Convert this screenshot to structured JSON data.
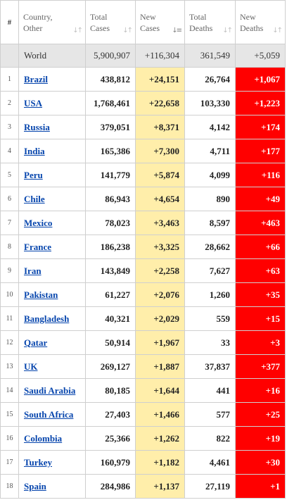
{
  "header": {
    "num": "#",
    "country": "Country, Other",
    "total_cases": "Total Cases",
    "new_cases": "New Cases",
    "total_deaths": "Total Deaths",
    "new_deaths": "New Deaths"
  },
  "world": {
    "name": "World",
    "total_cases": "5,900,907",
    "new_cases": "+116,304",
    "total_deaths": "361,549",
    "new_deaths": "+5,059"
  },
  "rows": [
    {
      "rank": "1",
      "country": "Brazil",
      "total_cases": "438,812",
      "new_cases": "+24,151",
      "total_deaths": "26,764",
      "new_deaths": "+1,067"
    },
    {
      "rank": "2",
      "country": "USA",
      "total_cases": "1,768,461",
      "new_cases": "+22,658",
      "total_deaths": "103,330",
      "new_deaths": "+1,223"
    },
    {
      "rank": "3",
      "country": "Russia",
      "total_cases": "379,051",
      "new_cases": "+8,371",
      "total_deaths": "4,142",
      "new_deaths": "+174"
    },
    {
      "rank": "4",
      "country": "India",
      "total_cases": "165,386",
      "new_cases": "+7,300",
      "total_deaths": "4,711",
      "new_deaths": "+177"
    },
    {
      "rank": "5",
      "country": "Peru",
      "total_cases": "141,779",
      "new_cases": "+5,874",
      "total_deaths": "4,099",
      "new_deaths": "+116"
    },
    {
      "rank": "6",
      "country": "Chile",
      "total_cases": "86,943",
      "new_cases": "+4,654",
      "total_deaths": "890",
      "new_deaths": "+49"
    },
    {
      "rank": "7",
      "country": "Mexico",
      "total_cases": "78,023",
      "new_cases": "+3,463",
      "total_deaths": "8,597",
      "new_deaths": "+463"
    },
    {
      "rank": "8",
      "country": "France",
      "total_cases": "186,238",
      "new_cases": "+3,325",
      "total_deaths": "28,662",
      "new_deaths": "+66"
    },
    {
      "rank": "9",
      "country": "Iran",
      "total_cases": "143,849",
      "new_cases": "+2,258",
      "total_deaths": "7,627",
      "new_deaths": "+63"
    },
    {
      "rank": "10",
      "country": "Pakistan",
      "total_cases": "61,227",
      "new_cases": "+2,076",
      "total_deaths": "1,260",
      "new_deaths": "+35"
    },
    {
      "rank": "11",
      "country": "Bangladesh",
      "total_cases": "40,321",
      "new_cases": "+2,029",
      "total_deaths": "559",
      "new_deaths": "+15"
    },
    {
      "rank": "12",
      "country": "Qatar",
      "total_cases": "50,914",
      "new_cases": "+1,967",
      "total_deaths": "33",
      "new_deaths": "+3"
    },
    {
      "rank": "13",
      "country": "UK",
      "total_cases": "269,127",
      "new_cases": "+1,887",
      "total_deaths": "37,837",
      "new_deaths": "+377"
    },
    {
      "rank": "14",
      "country": "Saudi Arabia",
      "total_cases": "80,185",
      "new_cases": "+1,644",
      "total_deaths": "441",
      "new_deaths": "+16"
    },
    {
      "rank": "15",
      "country": "South Africa",
      "total_cases": "27,403",
      "new_cases": "+1,466",
      "total_deaths": "577",
      "new_deaths": "+25"
    },
    {
      "rank": "16",
      "country": "Colombia",
      "total_cases": "25,366",
      "new_cases": "+1,262",
      "total_deaths": "822",
      "new_deaths": "+19"
    },
    {
      "rank": "17",
      "country": "Turkey",
      "total_cases": "160,979",
      "new_cases": "+1,182",
      "total_deaths": "4,461",
      "new_deaths": "+30"
    },
    {
      "rank": "18",
      "country": "Spain",
      "total_cases": "284,986",
      "new_cases": "+1,137",
      "total_deaths": "27,119",
      "new_deaths": "+1"
    }
  ],
  "colors": {
    "new_cases_bg": "#ffeeaa",
    "new_deaths_bg": "#ff0000",
    "world_row_bg": "#e6e6e6",
    "link": "#0645ad"
  },
  "icons": {
    "sort": "sort-arrows-icon",
    "sort_active": "sort-desc-icon"
  }
}
